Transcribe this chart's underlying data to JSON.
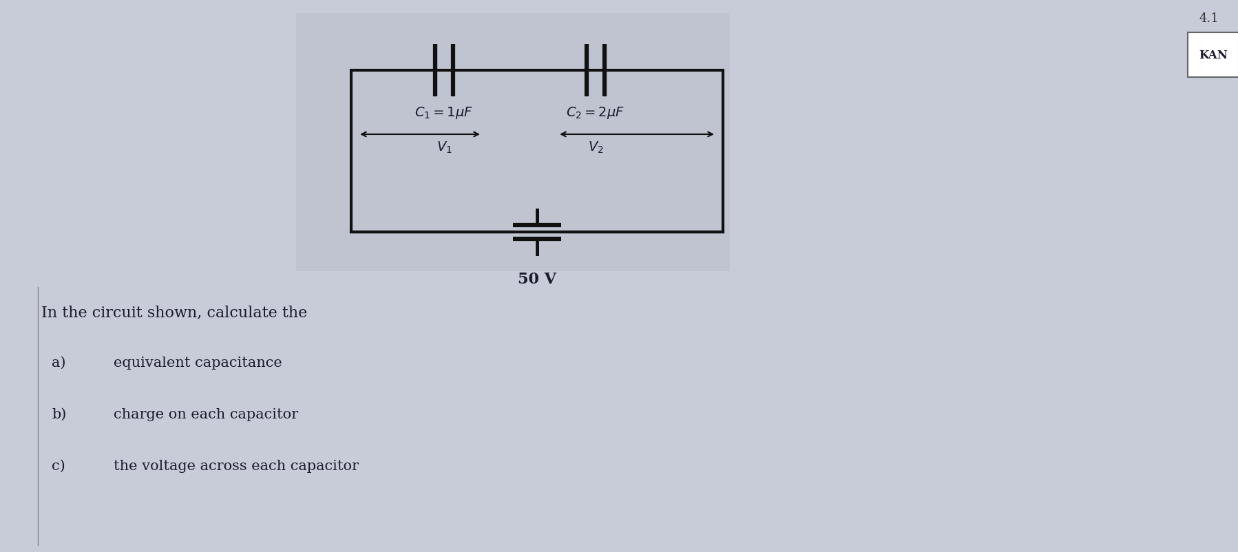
{
  "page_bg": "#c8ccd8",
  "circuit_bg": "#bfc4d0",
  "title_text": "4.1",
  "kan_text": "KAN",
  "problem_text": "In the circuit shown, calculate the",
  "items": [
    {
      "label": "a)",
      "text": "equivalent capacitance"
    },
    {
      "label": "b)",
      "text": "charge on each capacitor"
    },
    {
      "label": "c)",
      "text": "the voltage across each capacitor"
    }
  ],
  "c1_label": "$C_1 = 1\\mu F$",
  "c2_label": "$C_2 = 2\\mu F$",
  "v1_label": "$V_1$",
  "v2_label": "$V_2$",
  "voltage_label": "50 V",
  "line_color": "#111111",
  "text_color": "#1a1a2e"
}
